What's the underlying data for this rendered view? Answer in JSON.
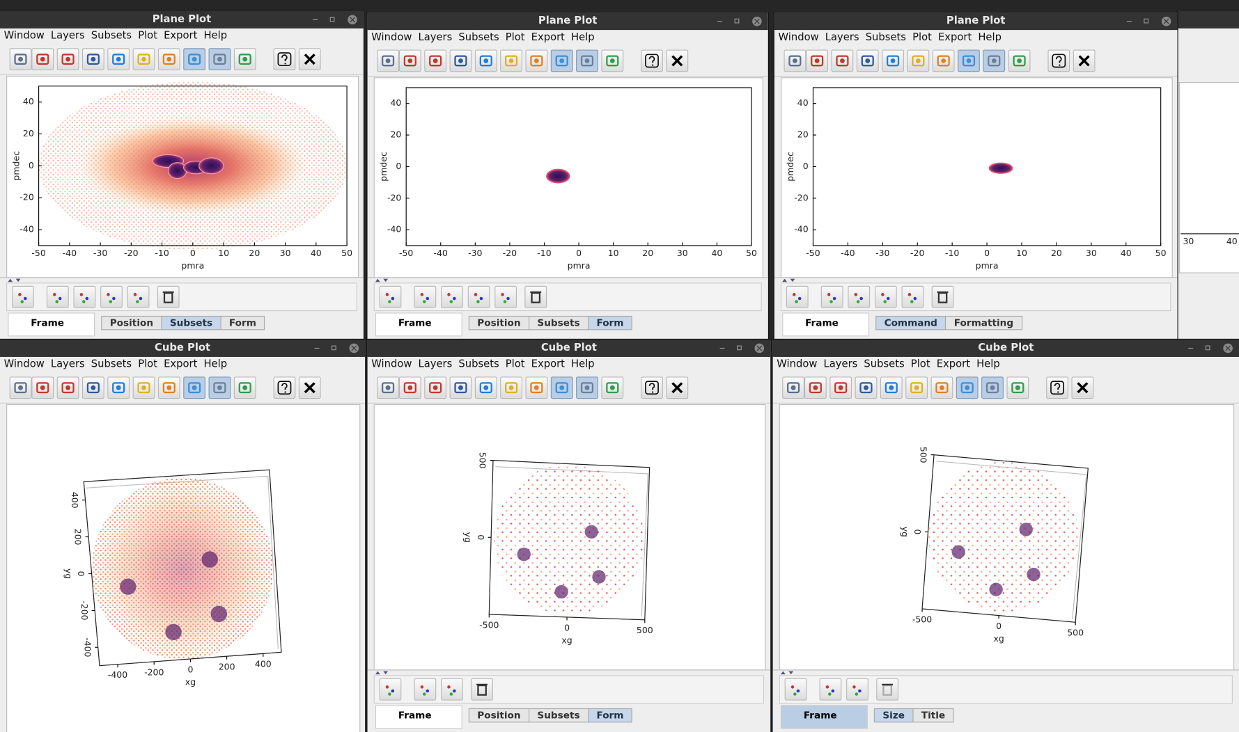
{
  "menu": [
    "Window",
    "Layers",
    "Subsets",
    "Plot",
    "Export",
    "Help"
  ],
  "windows": [
    {
      "title": "Plane Plot",
      "plot": {
        "xlabel": "pmra",
        "ylabel": "pmdec",
        "xlim": [
          -50,
          50
        ],
        "ylim": [
          -50,
          50
        ],
        "xticks": [
          -50,
          -40,
          -30,
          -20,
          -10,
          0,
          10,
          20,
          30,
          40,
          50
        ],
        "yticks": [
          40,
          20,
          0,
          -20,
          -40
        ]
      },
      "frame": "Frame",
      "tabs": [
        "Position",
        "Subsets",
        "Form"
      ]
    },
    {
      "title": "Plane Plot",
      "plot": {
        "xlabel": "pmra",
        "ylabel": "pmdec",
        "xlim": [
          -50,
          50
        ],
        "ylim": [
          -50,
          50
        ],
        "xticks": [
          -50,
          -40,
          -30,
          -20,
          -10,
          0,
          10,
          20,
          30,
          40,
          50
        ],
        "yticks": [
          40,
          20,
          0,
          -20,
          -40
        ]
      },
      "frame": "Frame",
      "tabs": [
        "Position",
        "Subsets",
        "Form"
      ]
    },
    {
      "title": "Plane Plot",
      "plot": {
        "xlabel": "pmra",
        "ylabel": "pmdec",
        "xlim": [
          -50,
          50
        ],
        "ylim": [
          -50,
          50
        ],
        "xticks": [
          -50,
          -40,
          -30,
          -20,
          -10,
          0,
          10,
          20,
          30,
          40,
          50
        ],
        "yticks": [
          40,
          20,
          0,
          -20,
          -40
        ]
      },
      "frame": "Frame",
      "tabs": [
        "Command",
        "Formatting"
      ]
    },
    {
      "title": "Cube Plot",
      "plot": {
        "xlabel": "xg",
        "ylabel": "yg",
        "xlim": [
          -500,
          500
        ],
        "ylim": [
          -500,
          500
        ],
        "xticks": [
          -400,
          -200,
          0,
          200,
          400
        ],
        "yticks": [
          400,
          200,
          0,
          -200,
          -400
        ]
      }
    },
    {
      "title": "Cube Plot",
      "plot": {
        "xlabel": "xg",
        "ylabel": "yg",
        "xlim": [
          -500,
          500
        ],
        "ylim": [
          -500,
          500
        ],
        "xticks": [
          -500,
          0,
          500
        ],
        "yticks": [
          500,
          0
        ]
      },
      "frame": "Frame",
      "tabs": [
        "Position",
        "Subsets",
        "Form"
      ]
    },
    {
      "title": "Cube Plot",
      "plot": {
        "xlabel": "xg",
        "ylabel": "yg",
        "xlim": [
          -500,
          500
        ],
        "ylim": [
          -500,
          500
        ],
        "xticks": [
          -500,
          0,
          500
        ],
        "yticks": [
          500,
          0
        ]
      },
      "frame": "Frame",
      "tabs": [
        "Size",
        "Title"
      ]
    }
  ],
  "partial_window": {
    "xticks": [
      30,
      40
    ]
  }
}
